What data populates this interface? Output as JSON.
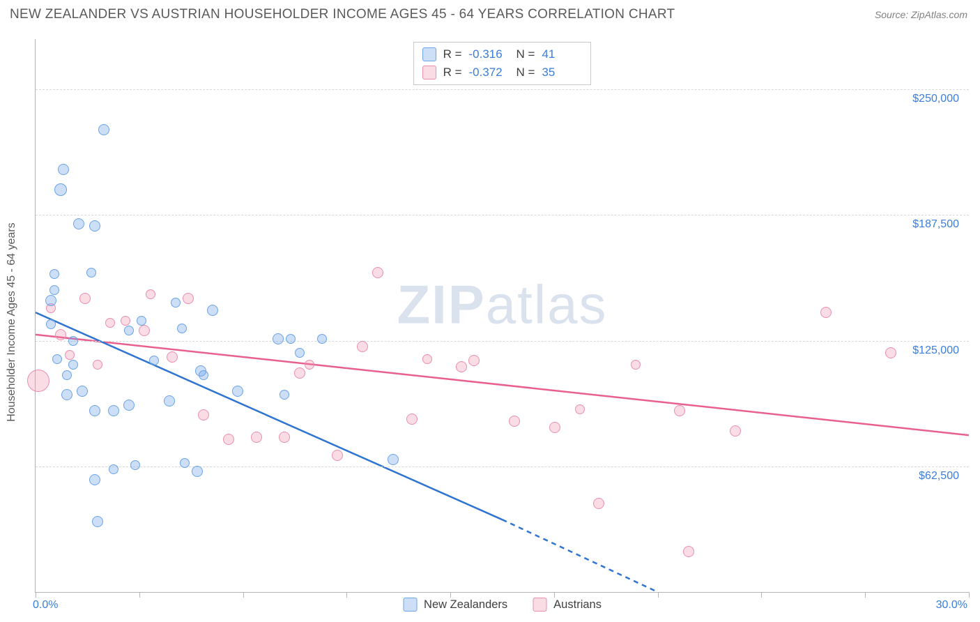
{
  "title": "NEW ZEALANDER VS AUSTRIAN HOUSEHOLDER INCOME AGES 45 - 64 YEARS CORRELATION CHART",
  "source": "Source: ZipAtlas.com",
  "watermark": {
    "zip": "ZIP",
    "atlas": "atlas"
  },
  "y_axis": {
    "title": "Householder Income Ages 45 - 64 years",
    "min": 0,
    "max": 275000,
    "ticks": [
      62500,
      125000,
      187500,
      250000
    ],
    "tick_labels": [
      "$62,500",
      "$125,000",
      "$187,500",
      "$250,000"
    ],
    "label_color": "#3b7ddb"
  },
  "x_axis": {
    "min": 0,
    "max": 30,
    "min_label": "0.0%",
    "max_label": "30.0%",
    "tick_positions": [
      0,
      3.33,
      6.67,
      10,
      13.33,
      16.67,
      20,
      23.33,
      26.67,
      30
    ],
    "label_color": "#3b7ddb"
  },
  "colors": {
    "blue_fill": "rgba(109,163,232,0.35)",
    "blue_stroke": "#6aa3e6",
    "pink_fill": "rgba(239,140,170,0.30)",
    "pink_stroke": "#ea8db0",
    "blue_line": "#2f74d0",
    "pink_line": "#e95f8f",
    "grid": "#d8d8d8",
    "axis": "#b5b5b5",
    "text_muted": "#5a5a5a"
  },
  "correlation_legend": [
    {
      "series": "blue",
      "R": "-0.316",
      "N": "41"
    },
    {
      "series": "pink",
      "R": "-0.372",
      "N": "35"
    }
  ],
  "bottom_legend": [
    {
      "series": "blue",
      "label": "New Zealanders"
    },
    {
      "series": "pink",
      "label": "Austrians"
    }
  ],
  "trend_lines": {
    "blue": {
      "x1": 0,
      "y1": 139000,
      "x2_solid": 15,
      "y2_solid": 36000,
      "x2_dash": 20,
      "y2_dash": 0
    },
    "pink": {
      "x1": 0,
      "y1": 128000,
      "x2": 30,
      "y2": 78000
    }
  },
  "points": {
    "blue": [
      {
        "x": 0.5,
        "y": 133000,
        "r": 7
      },
      {
        "x": 0.6,
        "y": 150000,
        "r": 7
      },
      {
        "x": 0.6,
        "y": 158000,
        "r": 7
      },
      {
        "x": 0.8,
        "y": 200000,
        "r": 9
      },
      {
        "x": 0.9,
        "y": 210000,
        "r": 8
      },
      {
        "x": 1.4,
        "y": 183000,
        "r": 8
      },
      {
        "x": 1.2,
        "y": 125000,
        "r": 7
      },
      {
        "x": 0.7,
        "y": 116000,
        "r": 7
      },
      {
        "x": 1.0,
        "y": 108000,
        "r": 7
      },
      {
        "x": 1.2,
        "y": 113000,
        "r": 7
      },
      {
        "x": 1.0,
        "y": 98000,
        "r": 8
      },
      {
        "x": 1.5,
        "y": 100000,
        "r": 8
      },
      {
        "x": 2.2,
        "y": 230000,
        "r": 8
      },
      {
        "x": 1.9,
        "y": 182000,
        "r": 8
      },
      {
        "x": 1.8,
        "y": 159000,
        "r": 7
      },
      {
        "x": 1.9,
        "y": 90000,
        "r": 8
      },
      {
        "x": 2.5,
        "y": 90000,
        "r": 8
      },
      {
        "x": 1.9,
        "y": 56000,
        "r": 8
      },
      {
        "x": 2.0,
        "y": 35000,
        "r": 8
      },
      {
        "x": 2.5,
        "y": 61000,
        "r": 7
      },
      {
        "x": 3.0,
        "y": 93000,
        "r": 8
      },
      {
        "x": 3.2,
        "y": 63000,
        "r": 7
      },
      {
        "x": 3.4,
        "y": 135000,
        "r": 7
      },
      {
        "x": 3.8,
        "y": 115000,
        "r": 7
      },
      {
        "x": 3.0,
        "y": 130000,
        "r": 7
      },
      {
        "x": 4.5,
        "y": 144000,
        "r": 7
      },
      {
        "x": 4.7,
        "y": 131000,
        "r": 7
      },
      {
        "x": 4.3,
        "y": 95000,
        "r": 8
      },
      {
        "x": 5.2,
        "y": 60000,
        "r": 8
      },
      {
        "x": 4.8,
        "y": 64000,
        "r": 7
      },
      {
        "x": 5.3,
        "y": 110000,
        "r": 8
      },
      {
        "x": 5.4,
        "y": 108000,
        "r": 7
      },
      {
        "x": 5.7,
        "y": 140000,
        "r": 8
      },
      {
        "x": 6.5,
        "y": 100000,
        "r": 8
      },
      {
        "x": 7.8,
        "y": 126000,
        "r": 8
      },
      {
        "x": 8.2,
        "y": 126000,
        "r": 7
      },
      {
        "x": 8.5,
        "y": 119000,
        "r": 7
      },
      {
        "x": 8.0,
        "y": 98000,
        "r": 7
      },
      {
        "x": 9.2,
        "y": 126000,
        "r": 7
      },
      {
        "x": 11.5,
        "y": 66000,
        "r": 8
      },
      {
        "x": 0.5,
        "y": 145000,
        "r": 8
      }
    ],
    "pink": [
      {
        "x": 0.1,
        "y": 105000,
        "r": 16
      },
      {
        "x": 0.8,
        "y": 128000,
        "r": 8
      },
      {
        "x": 1.6,
        "y": 146000,
        "r": 8
      },
      {
        "x": 2.4,
        "y": 134000,
        "r": 7
      },
      {
        "x": 2.9,
        "y": 135000,
        "r": 7
      },
      {
        "x": 3.5,
        "y": 130000,
        "r": 8
      },
      {
        "x": 3.7,
        "y": 148000,
        "r": 7
      },
      {
        "x": 4.4,
        "y": 117000,
        "r": 8
      },
      {
        "x": 4.9,
        "y": 146000,
        "r": 8
      },
      {
        "x": 5.4,
        "y": 88000,
        "r": 8
      },
      {
        "x": 6.2,
        "y": 76000,
        "r": 8
      },
      {
        "x": 7.1,
        "y": 77000,
        "r": 8
      },
      {
        "x": 8.0,
        "y": 77000,
        "r": 8
      },
      {
        "x": 8.5,
        "y": 109000,
        "r": 8
      },
      {
        "x": 8.8,
        "y": 113000,
        "r": 7
      },
      {
        "x": 9.7,
        "y": 68000,
        "r": 8
      },
      {
        "x": 10.5,
        "y": 122000,
        "r": 8
      },
      {
        "x": 11.0,
        "y": 159000,
        "r": 8
      },
      {
        "x": 12.1,
        "y": 86000,
        "r": 8
      },
      {
        "x": 12.6,
        "y": 116000,
        "r": 7
      },
      {
        "x": 13.7,
        "y": 112000,
        "r": 8
      },
      {
        "x": 14.1,
        "y": 115000,
        "r": 8
      },
      {
        "x": 15.4,
        "y": 85000,
        "r": 8
      },
      {
        "x": 16.7,
        "y": 82000,
        "r": 8
      },
      {
        "x": 17.5,
        "y": 91000,
        "r": 7
      },
      {
        "x": 18.1,
        "y": 44000,
        "r": 8
      },
      {
        "x": 19.3,
        "y": 113000,
        "r": 7
      },
      {
        "x": 20.7,
        "y": 90000,
        "r": 8
      },
      {
        "x": 21.0,
        "y": 20000,
        "r": 8
      },
      {
        "x": 22.5,
        "y": 80000,
        "r": 8
      },
      {
        "x": 25.4,
        "y": 139000,
        "r": 8
      },
      {
        "x": 27.5,
        "y": 119000,
        "r": 8
      },
      {
        "x": 2.0,
        "y": 113000,
        "r": 7
      },
      {
        "x": 1.1,
        "y": 118000,
        "r": 7
      },
      {
        "x": 0.5,
        "y": 141000,
        "r": 7
      }
    ]
  }
}
